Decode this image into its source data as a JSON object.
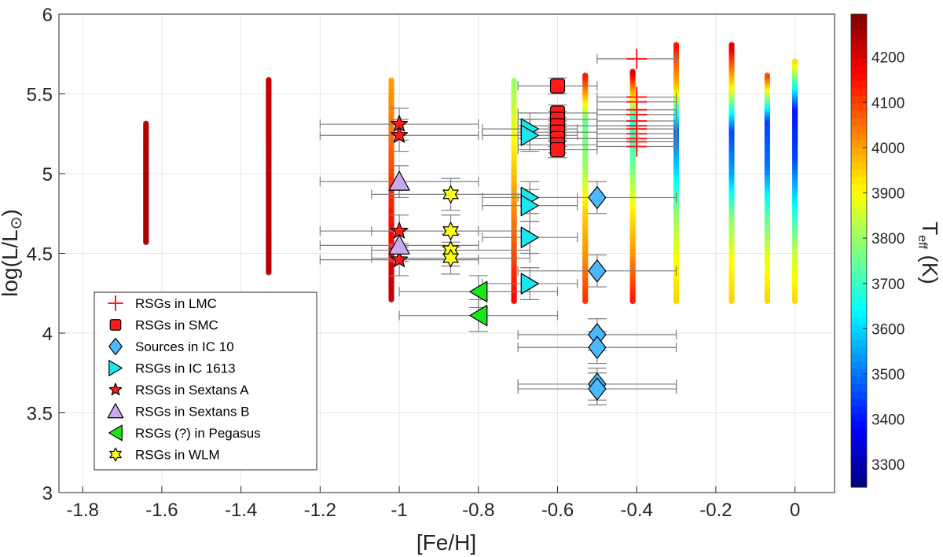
{
  "chart_data": {
    "type": "scatter",
    "xlabel": "[Fe/H]",
    "ylabel": {
      "main": "log(L/L",
      "sub": "⊙",
      "close": ")"
    },
    "xlim": [
      -1.86,
      0.1
    ],
    "ylim": [
      3,
      6
    ],
    "grid": true,
    "legend_placement": "bottom-left",
    "x_ticks": [
      -1.8,
      -1.6,
      -1.4,
      -1.2,
      -1.0,
      -0.8,
      -0.6,
      -0.4,
      -0.2,
      0
    ],
    "x_tick_labels": [
      "-1.8",
      "-1.6",
      "-1.4",
      "-1.2",
      "-1",
      "-0.8",
      "-0.6",
      "-0.4",
      "-0.2",
      "0"
    ],
    "y_ticks": [
      3,
      3.5,
      4,
      4.5,
      5,
      5.5,
      6
    ],
    "y_tick_labels": [
      "3",
      "3.5",
      "4",
      "4.5",
      "5",
      "5.5",
      "6"
    ],
    "colorbar": {
      "label": {
        "main": "T",
        "sub": "eff",
        "rest": " (K)"
      },
      "clim": [
        3250,
        4295
      ],
      "colormap": "jet",
      "ticks": [
        3300,
        3400,
        3500,
        3600,
        3700,
        3800,
        3900,
        4000,
        4100,
        4200
      ],
      "tick_labels": [
        "3300",
        "3400",
        "3500",
        "3600",
        "3700",
        "3800",
        "3900",
        "4000",
        "4100",
        "4200"
      ]
    },
    "model_tracks": [
      {
        "x": -1.64,
        "y_range": [
          4.57,
          5.32
        ],
        "teff_profile": [
          4250,
          4250,
          4240
        ]
      },
      {
        "x": -1.33,
        "y_range": [
          4.38,
          5.59
        ],
        "teff_profile": [
          4240,
          4230,
          4220
        ]
      },
      {
        "x": -1.02,
        "y_range": [
          4.21,
          5.59
        ],
        "teff_profile": [
          4230,
          4180,
          4120,
          4050,
          4000
        ]
      },
      {
        "x": -0.71,
        "y_range": [
          4.2,
          5.59
        ],
        "teff_profile": [
          4170,
          4080,
          4000,
          3900,
          3800
        ]
      },
      {
        "x": -0.53,
        "y_range": [
          4.2,
          5.62
        ],
        "teff_profile": [
          4120,
          4020,
          3950,
          3800,
          3750,
          4150
        ]
      },
      {
        "x": -0.41,
        "y_range": [
          4.2,
          5.64
        ],
        "teff_profile": [
          4150,
          4020,
          3920,
          3750,
          3680,
          4200
        ]
      },
      {
        "x": -0.3,
        "y_range": [
          4.2,
          5.81
        ],
        "teff_profile": [
          3950,
          3900,
          3800,
          3620,
          3480,
          3950,
          4150
        ]
      },
      {
        "x": -0.16,
        "y_range": [
          4.2,
          5.81
        ],
        "teff_profile": [
          3950,
          3900,
          3780,
          3550,
          3450,
          3900,
          4200
        ]
      },
      {
        "x": -0.07,
        "y_range": [
          4.2,
          5.62
        ],
        "teff_profile": [
          3950,
          3880,
          3720,
          3500,
          3450,
          4100
        ]
      },
      {
        "x": 0.0,
        "y_range": [
          4.2,
          5.71
        ],
        "teff_profile": [
          3950,
          3850,
          3650,
          3450,
          3400,
          3950
        ]
      }
    ],
    "series": [
      {
        "name": "RSGs in LMC",
        "marker": "plus",
        "color": "#ff1a1a",
        "x": [
          -0.4,
          -0.4,
          -0.4,
          -0.4,
          -0.4,
          -0.4,
          -0.4,
          -0.4,
          -0.4,
          -0.4,
          -0.4,
          -0.4
        ],
        "y": [
          5.72,
          5.48,
          5.45,
          5.4,
          5.37,
          5.33,
          5.3,
          5.28,
          5.25,
          5.22,
          5.2,
          5.17
        ],
        "xerr": 0.1,
        "yerr": 0
      },
      {
        "name": "RSGs in SMC",
        "marker": "square",
        "color": "#ff1a1a",
        "x": [
          -0.6,
          -0.6,
          -0.6,
          -0.6,
          -0.6,
          -0.6,
          -0.6,
          -0.6
        ],
        "y": [
          5.55,
          5.38,
          5.34,
          5.3,
          5.26,
          5.22,
          5.18,
          5.15
        ],
        "xerr": 0.1,
        "yerr": 0.05
      },
      {
        "name": "Sources in IC 10",
        "marker": "diamond",
        "color": "#4db8ff",
        "x": [
          -0.5,
          -0.5,
          -0.5,
          -0.5,
          -0.5,
          -0.5
        ],
        "y": [
          4.85,
          4.39,
          3.99,
          3.91,
          3.68,
          3.65
        ],
        "xerr": 0.2,
        "yerr": 0.1
      },
      {
        "name": "RSGs in IC 1613",
        "marker": "triangle-right",
        "color": "#1ae6f0",
        "x": [
          -0.67,
          -0.67,
          -0.67,
          -0.67,
          -0.67,
          -0.67
        ],
        "y": [
          5.28,
          5.24,
          4.85,
          4.8,
          4.6,
          4.31
        ],
        "xerr": 0.12,
        "yerr": 0.1
      },
      {
        "name": "RSGs in Sextans A",
        "marker": "pentagram",
        "color": "#ff1a1a",
        "x": [
          -1.0,
          -1.0,
          -1.0,
          -1.0
        ],
        "y": [
          5.31,
          5.24,
          4.64,
          4.46
        ],
        "xerr": 0.2,
        "yerr": 0.1
      },
      {
        "name": "RSGs in Sextans B",
        "marker": "triangle-up",
        "color": "#c9a9f0",
        "x": [
          -1.0,
          -1.0
        ],
        "y": [
          4.95,
          4.55
        ],
        "xerr": 0.2,
        "yerr": 0.1
      },
      {
        "name": "RSGs (?) in Pegasus",
        "marker": "triangle-left",
        "color": "#1ae61a",
        "x": [
          -0.8,
          -0.8
        ],
        "y": [
          4.26,
          4.11
        ],
        "xerr": 0.2,
        "yerr": 0.1
      },
      {
        "name": "RSGs in WLM",
        "marker": "hexagram",
        "color": "#ffff1a",
        "x": [
          -0.87,
          -0.87,
          -0.87,
          -0.87
        ],
        "y": [
          4.87,
          4.64,
          4.52,
          4.47
        ],
        "xerr": 0.2,
        "yerr": 0.1
      }
    ]
  }
}
